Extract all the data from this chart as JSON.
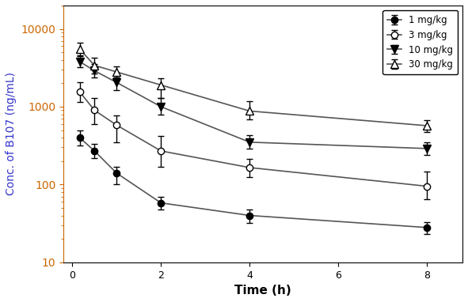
{
  "time": [
    0.167,
    0.5,
    1,
    2,
    4,
    8
  ],
  "series": [
    {
      "label": "1 mg/kg",
      "mean": [
        400,
        270,
        140,
        58,
        40,
        28
      ],
      "err_low": [
        80,
        50,
        40,
        10,
        8,
        5
      ],
      "err_high": [
        100,
        60,
        30,
        12,
        8,
        5
      ],
      "marker": "o",
      "fillstyle": "full",
      "markersize": 6
    },
    {
      "label": "3 mg/kg",
      "mean": [
        1550,
        900,
        580,
        270,
        165,
        95
      ],
      "err_low": [
        400,
        300,
        230,
        100,
        40,
        30
      ],
      "err_high": [
        500,
        400,
        200,
        150,
        50,
        50
      ],
      "marker": "o",
      "fillstyle": "none",
      "markersize": 6
    },
    {
      "label": "10 mg/kg",
      "mean": [
        3800,
        2900,
        2050,
        1000,
        350,
        290
      ],
      "err_low": [
        600,
        500,
        400,
        200,
        60,
        50
      ],
      "err_high": [
        700,
        600,
        350,
        280,
        80,
        60
      ],
      "marker": "v",
      "fillstyle": "full",
      "markersize": 7
    },
    {
      "label": "30 mg/kg",
      "mean": [
        5500,
        3400,
        2800,
        1900,
        880,
        570
      ],
      "err_low": [
        900,
        700,
        400,
        600,
        200,
        100
      ],
      "err_high": [
        1100,
        900,
        500,
        400,
        300,
        100
      ],
      "marker": "^",
      "fillstyle": "none",
      "markersize": 7
    }
  ],
  "xlabel": "Time (h)",
  "ylabel": "Conc. of B107 (ng/mL)",
  "xlim": [
    -0.2,
    8.8
  ],
  "ylim": [
    10,
    20000
  ],
  "xticks": [
    0,
    2,
    4,
    6,
    8
  ],
  "yticks": [
    10,
    100,
    1000,
    10000
  ],
  "ytick_labels": [
    "10",
    "100",
    "1000",
    "10000"
  ],
  "ylabel_color": "#3333CC",
  "ytick_color": "#CC6600",
  "xlabel_color": "#000000",
  "line_color": "#555555",
  "marker_color": "#000000",
  "legend_loc": "upper right",
  "linewidth": 1.2
}
